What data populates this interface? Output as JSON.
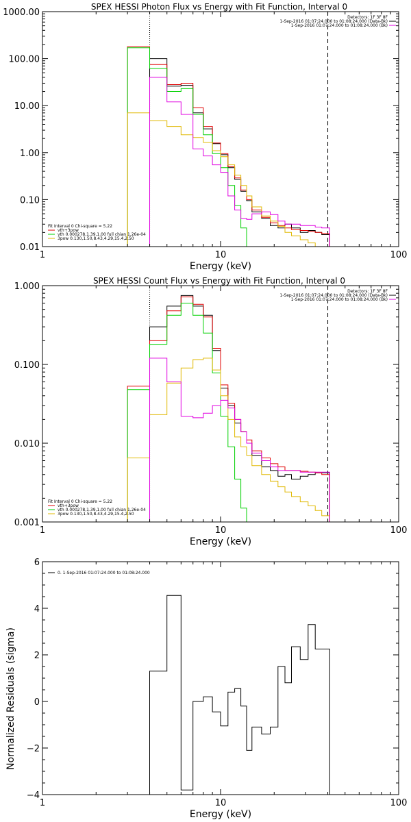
{
  "panels": [
    {
      "id": "photon",
      "title": "SPEX HESSI Photon Flux vs Energy with Fit Function, Interval 0",
      "xlabel": "Energy (keV)",
      "ylabel": "",
      "x_ticks": [
        "1",
        "10",
        "100"
      ],
      "y_ticks": [
        "1000.00",
        "100.00",
        "10.00",
        "1.00",
        "0.10",
        "0.01"
      ],
      "legend_top": [
        {
          "text": "Detectors: 1F 3F 8F",
          "color": ""
        },
        {
          "text": "1-Sep-2016 01:07:24.000 to 01:08:24.000 (Data-Bk)",
          "color": "#000000"
        },
        {
          "text": "1-Sep-2016 01:07:24.000 to 01:08:24.000 (Bk)",
          "color": "#e000e0"
        }
      ],
      "legend_fit": [
        {
          "text": "Fit Interval 0   Chi-square = 5.22",
          "color": ""
        },
        {
          "text": "vth+3pow",
          "color": "#e00000"
        },
        {
          "text": "vth 0.000278,1.39,1.00   full chian 1.26e-04",
          "color": "#00d000"
        },
        {
          "text": "3pow 0.130,1.50,8.43,4.29,15.4,2.50",
          "color": "#e0b800"
        }
      ]
    },
    {
      "id": "count",
      "title": "SPEX HESSI Count Flux vs Energy with Fit Function, Interval 0",
      "xlabel": "Energy (keV)",
      "ylabel": "",
      "x_ticks": [
        "1",
        "10",
        "100"
      ],
      "y_ticks": [
        "1.000",
        "0.100",
        "0.010",
        "0.001"
      ],
      "legend_top": [
        {
          "text": "Detectors: 1F 3F 8F",
          "color": ""
        },
        {
          "text": "1-Sep-2016 01:07:24.000 to 01:08:24.000 (Data-Bk)",
          "color": "#000000"
        },
        {
          "text": "1-Sep-2016 01:07:24.000 to 01:08:24.000 (Bk)",
          "color": "#e000e0"
        }
      ],
      "legend_fit": [
        {
          "text": "Fit Interval 0   Chi-square = 5.22",
          "color": ""
        },
        {
          "text": "vth+3pow",
          "color": "#e00000"
        },
        {
          "text": "vth 0.000278,1.39,1.00   full chian 1.26e-04",
          "color": "#00d000"
        },
        {
          "text": "3pow 0.130,1.50,8.43,4.29,15.4,2.50",
          "color": "#e0b800"
        }
      ]
    },
    {
      "id": "resid",
      "title": "",
      "xlabel": "Energy (keV)",
      "ylabel": "Normalized Residuals (sigma)",
      "x_ticks": [
        "1",
        "10",
        "100"
      ],
      "y_ticks": [
        "6",
        "4",
        "2",
        "0",
        "−2",
        "−4"
      ],
      "legend_top": [
        {
          "text": "0. 1-Sep-2016 01:07:24.000 to 01:08:24.000",
          "color": "#000000"
        }
      ],
      "legend_fit": []
    }
  ],
  "chart_data": [
    {
      "type": "line",
      "panel": "photon",
      "title": "SPEX HESSI Photon Flux vs Energy with Fit Function, Interval 0",
      "xlabel": "Energy (keV)",
      "x_scale": "log",
      "y_scale": "log",
      "xlim": [
        1,
        100
      ],
      "ylim": [
        0.01,
        1000
      ],
      "markers": {
        "dotted_x": 4.0,
        "dashed_x": 40.0
      },
      "bin_edges": [
        3.0,
        4.0,
        5.0,
        6.0,
        7.0,
        8.0,
        9.0,
        10.0,
        11.0,
        12.0,
        13.0,
        14.0,
        15.0,
        17.0,
        19.0,
        21.0,
        23.0,
        25.0,
        28.0,
        31.0,
        34.0,
        37.0,
        41.0
      ],
      "series": [
        {
          "name": "Data-Bk",
          "color": "#000000",
          "values": [
            null,
            100,
            26,
            27,
            7.0,
            3.2,
            1.55,
            0.9,
            0.48,
            0.27,
            0.15,
            0.095,
            0.055,
            0.04,
            0.028,
            0.025,
            0.03,
            0.025,
            0.02,
            0.022,
            0.02,
            0.018
          ]
        },
        {
          "name": "vth+3pow",
          "color": "#e00000",
          "values": [
            180,
            75,
            28,
            30,
            9.0,
            3.6,
            1.6,
            0.95,
            0.5,
            0.29,
            0.16,
            0.1,
            0.06,
            0.042,
            0.032,
            0.028,
            0.025,
            0.023,
            0.022,
            0.021,
            0.02,
            0.019
          ]
        },
        {
          "name": "vth",
          "color": "#00d000",
          "values": [
            170,
            62,
            20,
            23,
            6.5,
            2.4,
            0.95,
            0.48,
            0.2,
            0.075,
            0.025,
            0.009,
            0.003,
            null,
            null,
            null,
            null,
            null,
            null,
            null,
            null,
            null
          ]
        },
        {
          "name": "3pow",
          "color": "#e0b800",
          "values": [
            7.0,
            4.8,
            3.6,
            2.4,
            2.1,
            1.65,
            1.1,
            0.82,
            0.55,
            0.33,
            0.2,
            0.12,
            0.07,
            0.045,
            0.035,
            0.027,
            0.02,
            0.017,
            0.014,
            0.012,
            0.009,
            0.007
          ]
        },
        {
          "name": "Bk",
          "color": "#e000e0",
          "values": [
            null,
            40,
            12,
            6.5,
            1.2,
            0.85,
            0.55,
            0.38,
            0.12,
            0.06,
            0.04,
            0.038,
            0.05,
            0.055,
            0.048,
            0.035,
            0.03,
            0.03,
            0.028,
            0.028,
            0.026,
            0.025
          ]
        }
      ]
    },
    {
      "type": "line",
      "panel": "count",
      "title": "SPEX HESSI Count Flux vs Energy with Fit Function, Interval 0",
      "xlabel": "Energy (keV)",
      "x_scale": "log",
      "y_scale": "log",
      "xlim": [
        1,
        100
      ],
      "ylim": [
        0.001,
        1
      ],
      "markers": {
        "dotted_x": 4.0,
        "dashed_x": 40.0
      },
      "bin_edges": [
        3.0,
        4.0,
        5.0,
        6.0,
        7.0,
        8.0,
        9.0,
        10.0,
        11.0,
        12.0,
        13.0,
        14.0,
        15.0,
        17.0,
        19.0,
        21.0,
        23.0,
        25.0,
        28.0,
        31.0,
        34.0,
        37.0,
        41.0
      ],
      "series": [
        {
          "name": "Data-Bk",
          "color": "#000000",
          "values": [
            null,
            0.3,
            0.55,
            0.75,
            0.55,
            0.42,
            0.15,
            0.05,
            0.03,
            0.018,
            0.014,
            0.01,
            0.007,
            0.005,
            0.0045,
            0.0038,
            0.004,
            0.0035,
            0.0038,
            0.004,
            0.0042,
            0.0042
          ]
        },
        {
          "name": "vth+3pow",
          "color": "#e00000",
          "values": [
            0.053,
            0.2,
            0.48,
            0.72,
            0.58,
            0.4,
            0.16,
            0.055,
            0.032,
            0.02,
            0.014,
            0.011,
            0.008,
            0.0065,
            0.0055,
            0.005,
            0.0045,
            0.0045,
            0.0044,
            0.0043,
            0.0042,
            0.004
          ]
        },
        {
          "name": "vth",
          "color": "#00d000",
          "values": [
            0.048,
            0.18,
            0.42,
            0.6,
            0.42,
            0.25,
            0.078,
            0.022,
            0.009,
            0.0035,
            0.0015,
            null,
            null,
            null,
            null,
            null,
            null,
            null,
            null,
            null,
            null,
            null
          ]
        },
        {
          "name": "3pow",
          "color": "#e0b800",
          "values": [
            0.0065,
            0.023,
            0.058,
            0.09,
            0.115,
            0.12,
            0.085,
            0.04,
            0.02,
            0.012,
            0.009,
            0.007,
            0.0052,
            0.004,
            0.0033,
            0.0028,
            0.0024,
            0.0021,
            0.0018,
            0.0016,
            0.0014,
            0.0012
          ]
        },
        {
          "name": "Bk",
          "color": "#e000e0",
          "values": [
            null,
            0.12,
            0.06,
            0.022,
            0.021,
            0.024,
            0.03,
            0.035,
            0.028,
            0.02,
            0.014,
            0.01,
            0.0075,
            0.006,
            0.005,
            0.0045,
            0.0045,
            0.0045,
            0.0043,
            0.0043,
            0.0043,
            0.0043
          ]
        }
      ]
    },
    {
      "type": "line",
      "panel": "resid",
      "title": "",
      "xlabel": "Energy (keV)",
      "ylabel": "Normalized Residuals (sigma)",
      "x_scale": "log",
      "y_scale": "linear",
      "xlim": [
        1,
        100
      ],
      "ylim": [
        -4,
        6
      ],
      "bin_edges": [
        4.0,
        5.0,
        6.0,
        7.0,
        8.0,
        9.0,
        10.0,
        11.0,
        12.0,
        13.0,
        14.0,
        15.0,
        17.0,
        19.0,
        21.0,
        23.0,
        25.0,
        28.0,
        31.0,
        34.0,
        37.0,
        41.0
      ],
      "series": [
        {
          "name": "0. 1-Sep-2016 01:07:24.000 to 01:08:24.000",
          "color": "#000000",
          "values": [
            1.3,
            4.55,
            -3.8,
            0.0,
            0.2,
            -0.45,
            -1.05,
            0.4,
            0.55,
            -0.2,
            -2.1,
            -1.1,
            -1.4,
            -1.1,
            1.5,
            0.8,
            2.35,
            1.8,
            3.3,
            2.25,
            2.25
          ]
        }
      ]
    }
  ]
}
